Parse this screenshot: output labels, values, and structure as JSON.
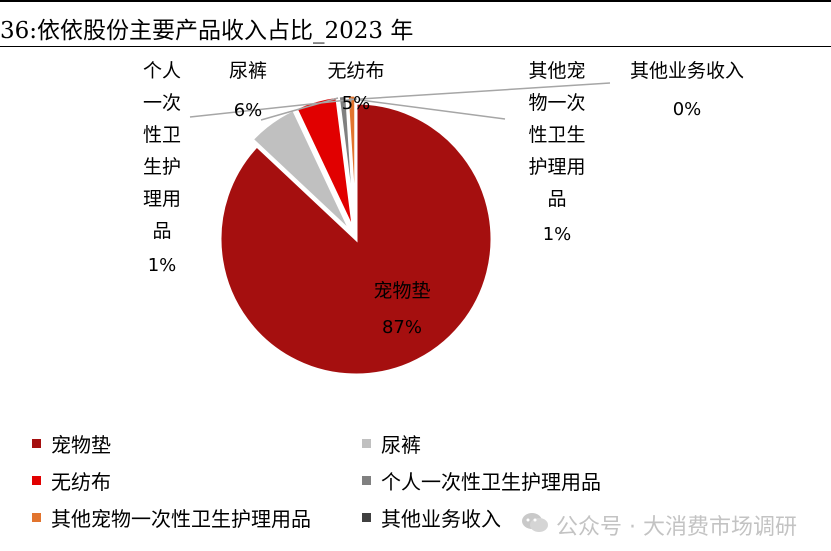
{
  "title": "36:依依股份主要产品收入占比_2023 年",
  "chart_data": {
    "type": "pie",
    "title": "",
    "slices": [
      {
        "name": "宠物垫",
        "value": 87,
        "label": "87%",
        "color": "#a50f0f"
      },
      {
        "name": "尿裤",
        "value": 6,
        "label": "6%",
        "color": "#c0c0c0"
      },
      {
        "name": "无纺布",
        "value": 5,
        "label": "5%",
        "color": "#e10000"
      },
      {
        "name": "个人一次性卫生护理用品",
        "value": 1,
        "label": "1%",
        "color": "#808080"
      },
      {
        "name": "其他宠物一次性卫生护理用品",
        "value": 1,
        "label": "1%",
        "color": "#e2742e"
      },
      {
        "name": "其他业务收入",
        "value": 0,
        "label": "0%",
        "color": "#404040"
      }
    ],
    "legend_position": "bottom"
  },
  "watermark": "公众号 · 大消费市场调研"
}
